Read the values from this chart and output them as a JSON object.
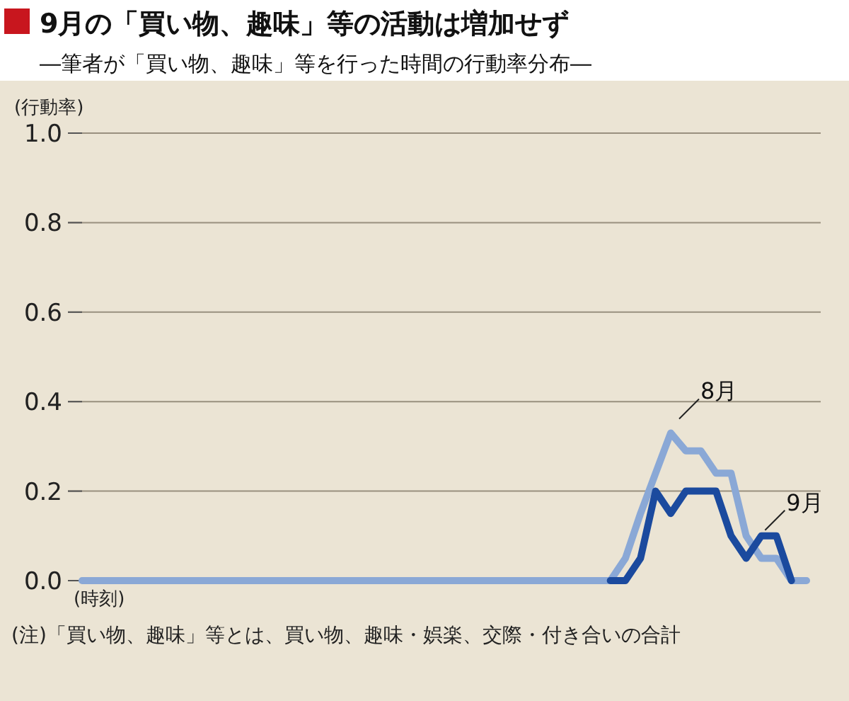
{
  "chart_data": {
    "type": "line",
    "title": "9月の「買い物、趣味」等の活動は増加せず",
    "subtitle": "―筆者が「買い物、趣味」等を行った時間の行動率分布―",
    "ylabel": "(行動率)",
    "xlabel": "(時刻)",
    "categories": [
      null,
      null,
      null,
      null,
      null,
      null,
      null,
      null,
      null,
      null,
      null,
      null,
      null,
      null,
      null,
      null,
      null,
      null,
      null,
      null,
      null,
      null,
      null,
      null,
      null,
      null,
      null,
      null,
      null,
      null,
      null,
      null,
      null,
      null,
      null,
      null,
      null,
      null,
      null,
      null,
      null,
      null,
      null,
      null,
      null,
      null,
      null,
      null,
      null
    ],
    "series": [
      {
        "name": "8月",
        "color": "#8aa8d6",
        "values": [
          0,
          0,
          0,
          0,
          0,
          0,
          0,
          0,
          0,
          0,
          0,
          0,
          0,
          0,
          0,
          0,
          0,
          0,
          0,
          0,
          0,
          0,
          0,
          0,
          0,
          0,
          0,
          0,
          0,
          0,
          0,
          0,
          0,
          0,
          0,
          0,
          0.05,
          0.15,
          0.24,
          0.33,
          0.29,
          0.29,
          0.24,
          0.24,
          0.1,
          0.05,
          0.05,
          0,
          0
        ]
      },
      {
        "name": "9月",
        "color": "#1b4a9e",
        "values": [
          null,
          null,
          null,
          null,
          null,
          null,
          null,
          null,
          null,
          null,
          null,
          null,
          null,
          null,
          null,
          null,
          null,
          null,
          null,
          null,
          null,
          null,
          null,
          null,
          null,
          null,
          null,
          null,
          null,
          null,
          null,
          null,
          null,
          null,
          null,
          0,
          0,
          0.05,
          0.2,
          0.15,
          0.2,
          0.2,
          0.2,
          0.1,
          0.05,
          0.1,
          0.1,
          0,
          null
        ]
      }
    ],
    "ylim": [
      0,
      1
    ],
    "yticks": [
      {
        "value": 0,
        "label": "0.0"
      },
      {
        "value": 0.2,
        "label": "0.2"
      },
      {
        "value": 0.4,
        "label": "0.4"
      },
      {
        "value": 0.6,
        "label": "0.6"
      },
      {
        "value": 0.8,
        "label": "0.8"
      },
      {
        "value": 1,
        "label": "1.0"
      }
    ],
    "grid": "y",
    "annotations": [
      "(注)「買い物、趣味」等とは、買い物、趣味・娯楽、交際・付き合いの合計"
    ]
  }
}
